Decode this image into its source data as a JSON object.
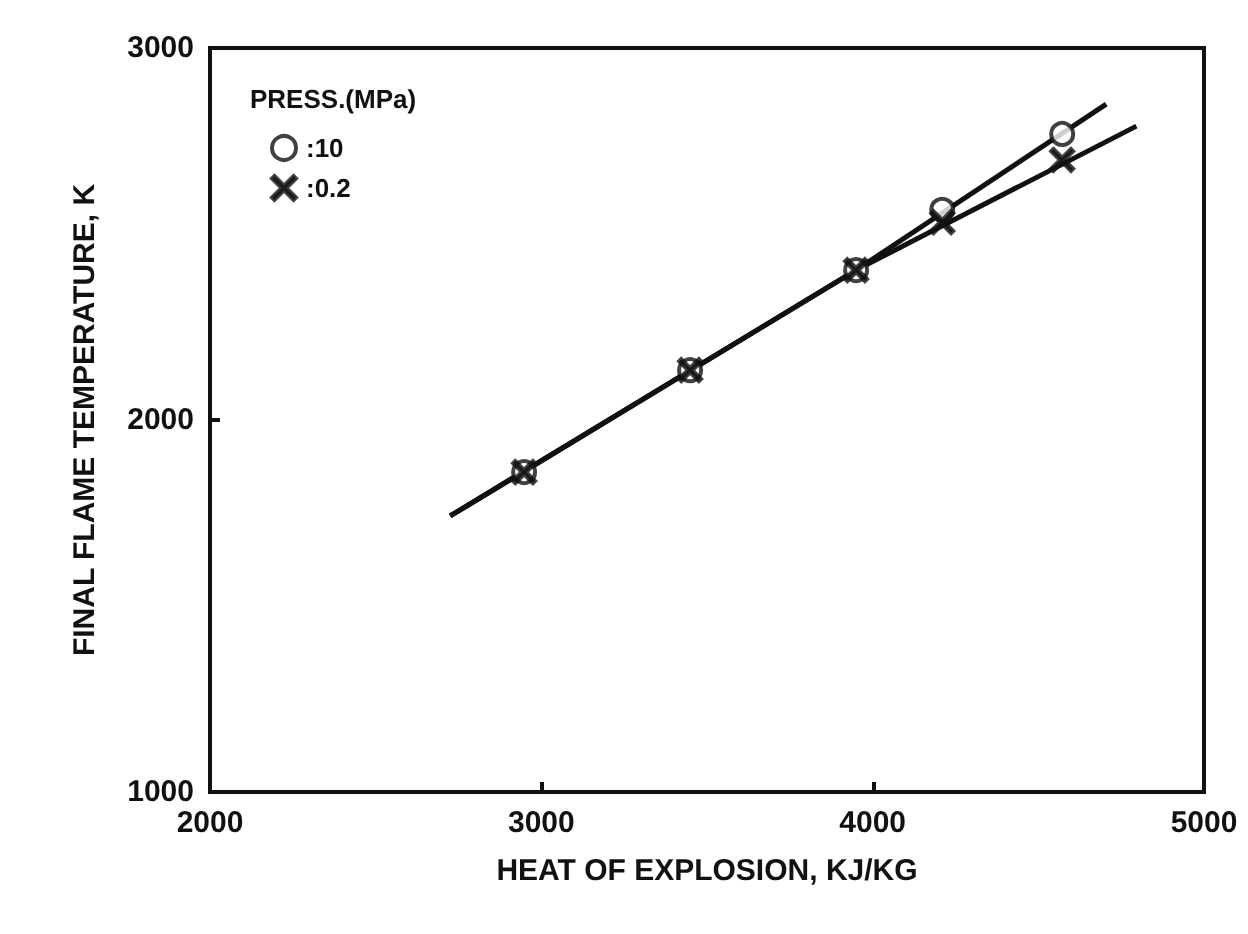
{
  "chart_data": {
    "type": "scatter",
    "xlabel": "HEAT OF EXPLOSION, KJ/KG",
    "ylabel": "FINAL FLAME TEMPERATURE, K",
    "legend_title": "PRESS.(MPa)",
    "legend": "top left",
    "grid": false,
    "xlim": [
      2000,
      5000
    ],
    "xticks": [
      2000,
      3000,
      4000,
      5000
    ],
    "ylim": [
      1000,
      3000
    ],
    "yticks": [
      1000,
      2000,
      3000
    ],
    "series": [
      {
        "name": ":10",
        "marker": "circle",
        "color": "#111111",
        "x": [
          2948,
          3449,
          3950,
          4210,
          4572
        ],
        "values": [
          1860,
          2134,
          2403,
          2565,
          2769
        ]
      },
      {
        "name": ":0.2",
        "marker": "cross",
        "color": "#111111",
        "x": [
          2948,
          3449,
          3950,
          4210,
          4572
        ],
        "values": [
          1860,
          2134,
          2403,
          2532,
          2699
        ]
      },
      {
        "type": "line",
        "marker": "none",
        "line_style": "solid",
        "color": "#111111",
        "x": [
          2725,
          3950,
          4705
        ],
        "values": [
          1742,
          2403,
          2849
        ]
      },
      {
        "type": "line",
        "marker": "none",
        "line_style": "solid",
        "color": "#111111",
        "x": [
          2725,
          3950,
          4796
        ],
        "values": [
          1742,
          2403,
          2790
        ]
      }
    ]
  }
}
